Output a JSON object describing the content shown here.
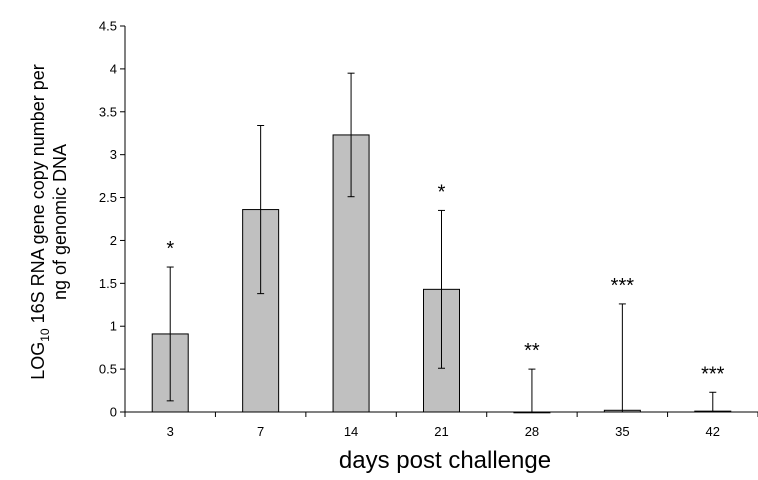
{
  "chart_data": {
    "type": "bar",
    "categories": [
      "3",
      "7",
      "14",
      "21",
      "28",
      "35",
      "42"
    ],
    "values": [
      0.91,
      2.36,
      3.23,
      1.43,
      0.0,
      0.02,
      0.01
    ],
    "error_low": [
      0.13,
      1.38,
      2.51,
      0.51,
      0.0,
      0.0,
      0.0
    ],
    "error_high": [
      1.69,
      3.34,
      3.95,
      2.35,
      0.5,
      1.26,
      0.23
    ],
    "significance": [
      "*",
      "",
      "",
      "*",
      "**",
      "***",
      "***"
    ],
    "xlabel": "days post challenge",
    "ylabel_line1_prefix": "LOG",
    "ylabel_line1_sub": "10",
    "ylabel_line1_suffix": " 16S RNA gene copy number per",
    "ylabel_line2": "ng of genomic DNA",
    "ylim": [
      0,
      4.5
    ],
    "yticks": [
      "0",
      "0.5",
      "1",
      "1.5",
      "2",
      "2.5",
      "3",
      "3.5",
      "4",
      "4.5"
    ],
    "bar_color": "#c0c0c0",
    "grid": false,
    "legend": "none"
  }
}
